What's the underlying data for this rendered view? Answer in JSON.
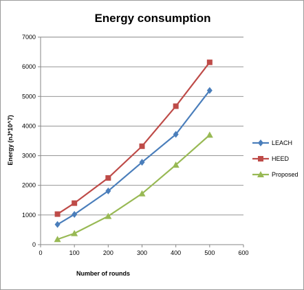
{
  "chart_data": {
    "type": "line",
    "title": "Energy consumption",
    "xlabel": "Number of rounds",
    "ylabel": "Energy (nJ*10^7)",
    "xlim": [
      0,
      600
    ],
    "ylim": [
      0,
      7000
    ],
    "x_ticks": [
      0,
      100,
      200,
      300,
      400,
      500,
      600
    ],
    "y_ticks": [
      0,
      1000,
      2000,
      3000,
      4000,
      5000,
      6000,
      7000
    ],
    "grid": "horizontal",
    "legend_position": "right",
    "x": [
      50,
      100,
      200,
      300,
      400,
      500
    ],
    "series": [
      {
        "name": "LEACH",
        "color": "#4a7ebb",
        "marker": "diamond",
        "values": [
          680,
          1020,
          1810,
          2780,
          3720,
          5200
        ]
      },
      {
        "name": "HEED",
        "color": "#be4b48",
        "marker": "square",
        "values": [
          1030,
          1400,
          2250,
          3320,
          4670,
          6150
        ]
      },
      {
        "name": "Proposed",
        "color": "#98b954",
        "marker": "triangle",
        "values": [
          180,
          380,
          960,
          1720,
          2690,
          3700
        ]
      }
    ]
  }
}
